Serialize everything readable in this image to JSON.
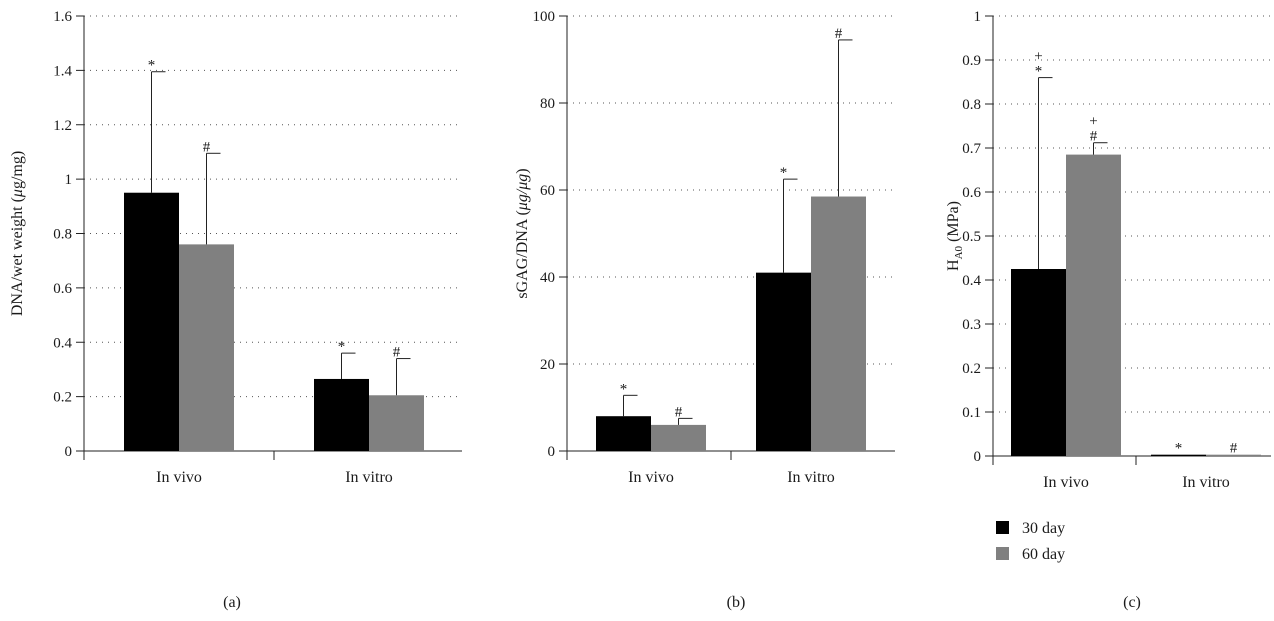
{
  "chart_data": [
    {
      "type": "bar",
      "panel_label": "(a)",
      "ylabel_main": "DNA/wet weight (",
      "ylabel_unit_italic": "μ",
      "ylabel_tail": "g/mg)",
      "ylim": [
        0,
        1.6
      ],
      "yticks": [
        0,
        0.2,
        0.4,
        0.6,
        0.8,
        1,
        1.2,
        1.4,
        1.6
      ],
      "ytick_labels": [
        "0",
        "0.2",
        "0.4",
        "0.6",
        "0.8",
        "1",
        "1.2",
        "1.4",
        "1.6"
      ],
      "grid": "horizontal dotted",
      "categories": [
        "In vivo",
        "In vitro"
      ],
      "series": [
        {
          "name": "30 day",
          "color": "#000000",
          "values": [
            0.95,
            0.265
          ],
          "errors": [
            0.445,
            0.095
          ],
          "markers": [
            "*",
            "*"
          ]
        },
        {
          "name": "60 day",
          "color": "#808080",
          "values": [
            0.76,
            0.205
          ],
          "errors": [
            0.335,
            0.135
          ],
          "markers": [
            "#",
            "#"
          ]
        }
      ]
    },
    {
      "type": "bar",
      "panel_label": "(b)",
      "ylabel_main": "sGAG/DNA (",
      "ylabel_unit_italic": "μg/μg",
      "ylabel_tail": ")",
      "ylim": [
        0,
        100
      ],
      "yticks": [
        0,
        20,
        40,
        60,
        80,
        100
      ],
      "ytick_labels": [
        "0",
        "20",
        "40",
        "60",
        "80",
        "100"
      ],
      "grid": "horizontal dotted",
      "categories": [
        "In vivo",
        "In vitro"
      ],
      "series": [
        {
          "name": "30 day",
          "color": "#000000",
          "values": [
            8,
            41
          ],
          "errors": [
            4.8,
            21.5
          ],
          "markers": [
            "*",
            "*"
          ]
        },
        {
          "name": "60 day",
          "color": "#808080",
          "values": [
            6,
            58.5
          ],
          "errors": [
            1.5,
            36
          ],
          "markers": [
            "#",
            "#"
          ]
        }
      ]
    },
    {
      "type": "bar",
      "panel_label": "(c)",
      "ylabel_main": "H",
      "ylabel_sub": "A0",
      "ylabel_tail": " (MPa)",
      "ylim": [
        0,
        1
      ],
      "yticks": [
        0,
        0.1,
        0.2,
        0.3,
        0.4,
        0.5,
        0.6,
        0.7,
        0.8,
        0.9,
        1
      ],
      "ytick_labels": [
        "0",
        "0.1",
        "0.2",
        "0.3",
        "0.4",
        "0.5",
        "0.6",
        "0.7",
        "0.8",
        "0.9",
        "1"
      ],
      "grid": "horizontal dotted",
      "categories": [
        "In vivo",
        "In vitro"
      ],
      "series": [
        {
          "name": "30 day",
          "color": "#000000",
          "values": [
            0.425,
            0.003
          ],
          "errors": [
            0.435,
            0
          ],
          "markers": [
            "*",
            "*"
          ],
          "plus": [
            true,
            false
          ]
        },
        {
          "name": "60 day",
          "color": "#808080",
          "values": [
            0.685,
            0.003
          ],
          "errors": [
            0.027,
            0
          ],
          "markers": [
            "#",
            "#"
          ],
          "plus": [
            true,
            false
          ]
        }
      ],
      "legend": {
        "placement": "bottom",
        "entries": [
          {
            "label": "30 day",
            "color": "#000000"
          },
          {
            "label": "60 day",
            "color": "#808080"
          }
        ]
      }
    }
  ]
}
